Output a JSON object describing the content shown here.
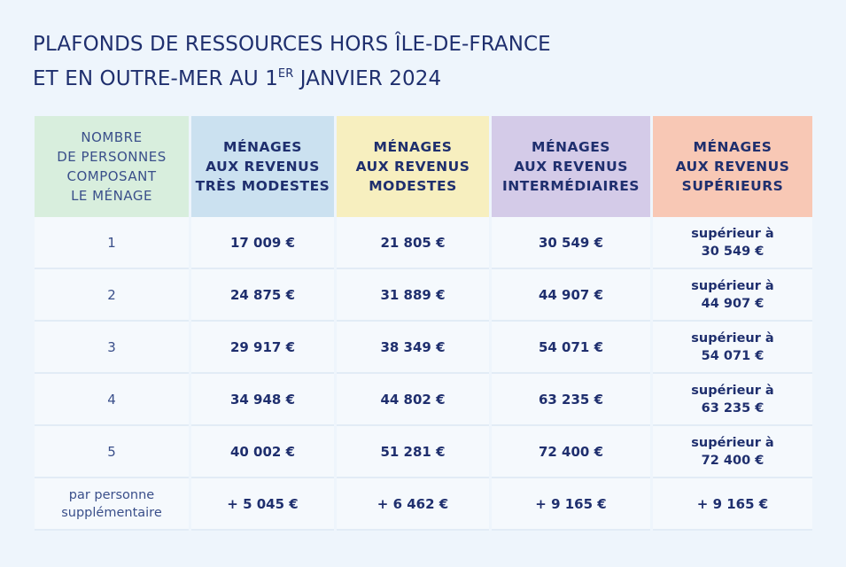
{
  "title": {
    "line1": "PLAFONDS DE RESSOURCES HORS ÎLE-DE-FRANCE",
    "line2_prefix": "ET EN OUTRE-MER AU 1",
    "line2_sup": "ER",
    "line2_suffix": " JANVIER 2024"
  },
  "table": {
    "headers": [
      [
        "NOMBRE",
        "DE PERSONNES",
        "COMPOSANT",
        "LE MÉNAGE"
      ],
      [
        "MÉNAGES",
        "AUX REVENUS",
        "TRÈS MODESTES"
      ],
      [
        "MÉNAGES",
        "AUX REVENUS",
        "MODESTES"
      ],
      [
        "MÉNAGES",
        "AUX REVENUS",
        "INTERMÉDIAIRES"
      ],
      [
        "MÉNAGES",
        "AUX REVENUS",
        "SUPÉRIEURS"
      ]
    ],
    "rows": [
      {
        "persons": "1",
        "tres_modestes": "17 009 €",
        "modestes": "21 805 €",
        "intermediaires": "30 549 €",
        "superieurs_label": "supérieur à",
        "superieurs": "30 549 €"
      },
      {
        "persons": "2",
        "tres_modestes": "24 875 €",
        "modestes": "31 889 €",
        "intermediaires": "44 907 €",
        "superieurs_label": "supérieur à",
        "superieurs": "44 907 €"
      },
      {
        "persons": "3",
        "tres_modestes": "29 917 €",
        "modestes": "38 349 €",
        "intermediaires": "54 071 €",
        "superieurs_label": "supérieur à",
        "superieurs": "54 071 €"
      },
      {
        "persons": "4",
        "tres_modestes": "34 948 €",
        "modestes": "44 802 €",
        "intermediaires": "63 235 €",
        "superieurs_label": "supérieur à",
        "superieurs": "63 235 €"
      },
      {
        "persons": "5",
        "tres_modestes": "40 002 €",
        "modestes": "51 281 €",
        "intermediaires": "72 400 €",
        "superieurs_label": "supérieur à",
        "superieurs": "72 400 €"
      }
    ],
    "extra_row": {
      "label_line1": "par personne",
      "label_line2": "supplémentaire",
      "tres_modestes": "+ 5 045 €",
      "modestes": "+ 6 462 €",
      "intermediaires": "+ 9 165 €",
      "superieurs": "+ 9 165 €"
    }
  },
  "colors": {
    "text": "#1f2f6e",
    "background": "#eef5fc",
    "header_persons": "#d8eedd",
    "header_tres_modestes": "#cbe1f0",
    "header_modestes": "#f7efbf",
    "header_intermediaires": "#d4cbe8",
    "header_superieurs": "#f8c8b5"
  }
}
